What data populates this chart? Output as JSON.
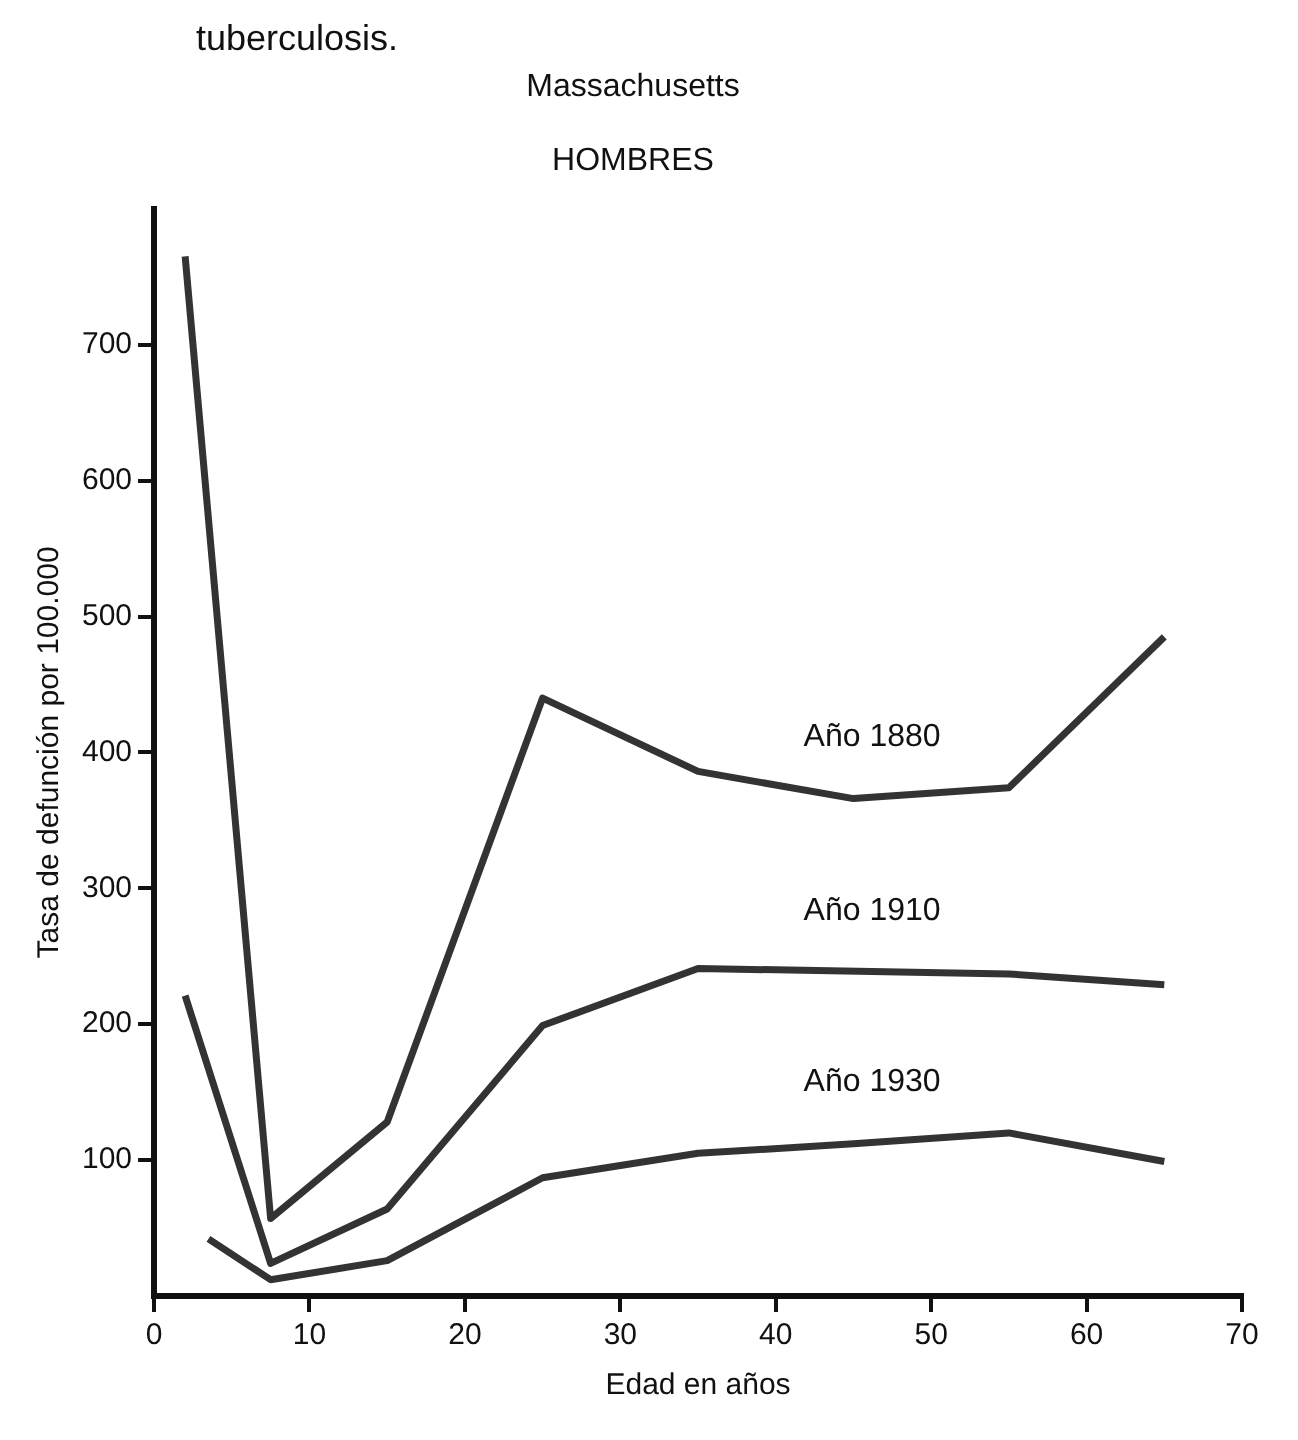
{
  "chart_data": {
    "type": "line",
    "title": "Massachusetts",
    "subtitle": "HOMBRES",
    "xlabel": "Edad en años",
    "ylabel": "Tasa de defunción por 100.000",
    "annotations": [
      "tuberculosis."
    ],
    "series": [
      {
        "name": "Año 1880",
        "color": "#333333",
        "x": [
          2,
          7.5,
          15,
          25,
          35,
          45,
          55,
          65
        ],
        "values": [
          765,
          57,
          128,
          440,
          386,
          366,
          374,
          485
        ]
      },
      {
        "name": "Año 1910",
        "color": "#333333",
        "x": [
          2,
          7.5,
          15,
          25,
          35,
          55,
          65
        ],
        "values": [
          221,
          24,
          64,
          199,
          241,
          237,
          229
        ]
      },
      {
        "name": "Año 1930",
        "color": "#333333",
        "x": [
          3.5,
          7.5,
          15,
          25,
          35,
          45,
          55,
          65
        ],
        "values": [
          42,
          12,
          26,
          87,
          105,
          112,
          120,
          99
        ]
      }
    ],
    "xlim": [
      0,
      70
    ],
    "xticks": [
      0,
      10,
      20,
      30,
      40,
      50,
      60,
      70
    ],
    "ylim": [
      0,
      800
    ],
    "yticks": [
      100,
      200,
      300,
      400,
      500,
      600,
      700
    ],
    "grid": false,
    "legend": false,
    "marker": "none",
    "line_style": "solid"
  }
}
